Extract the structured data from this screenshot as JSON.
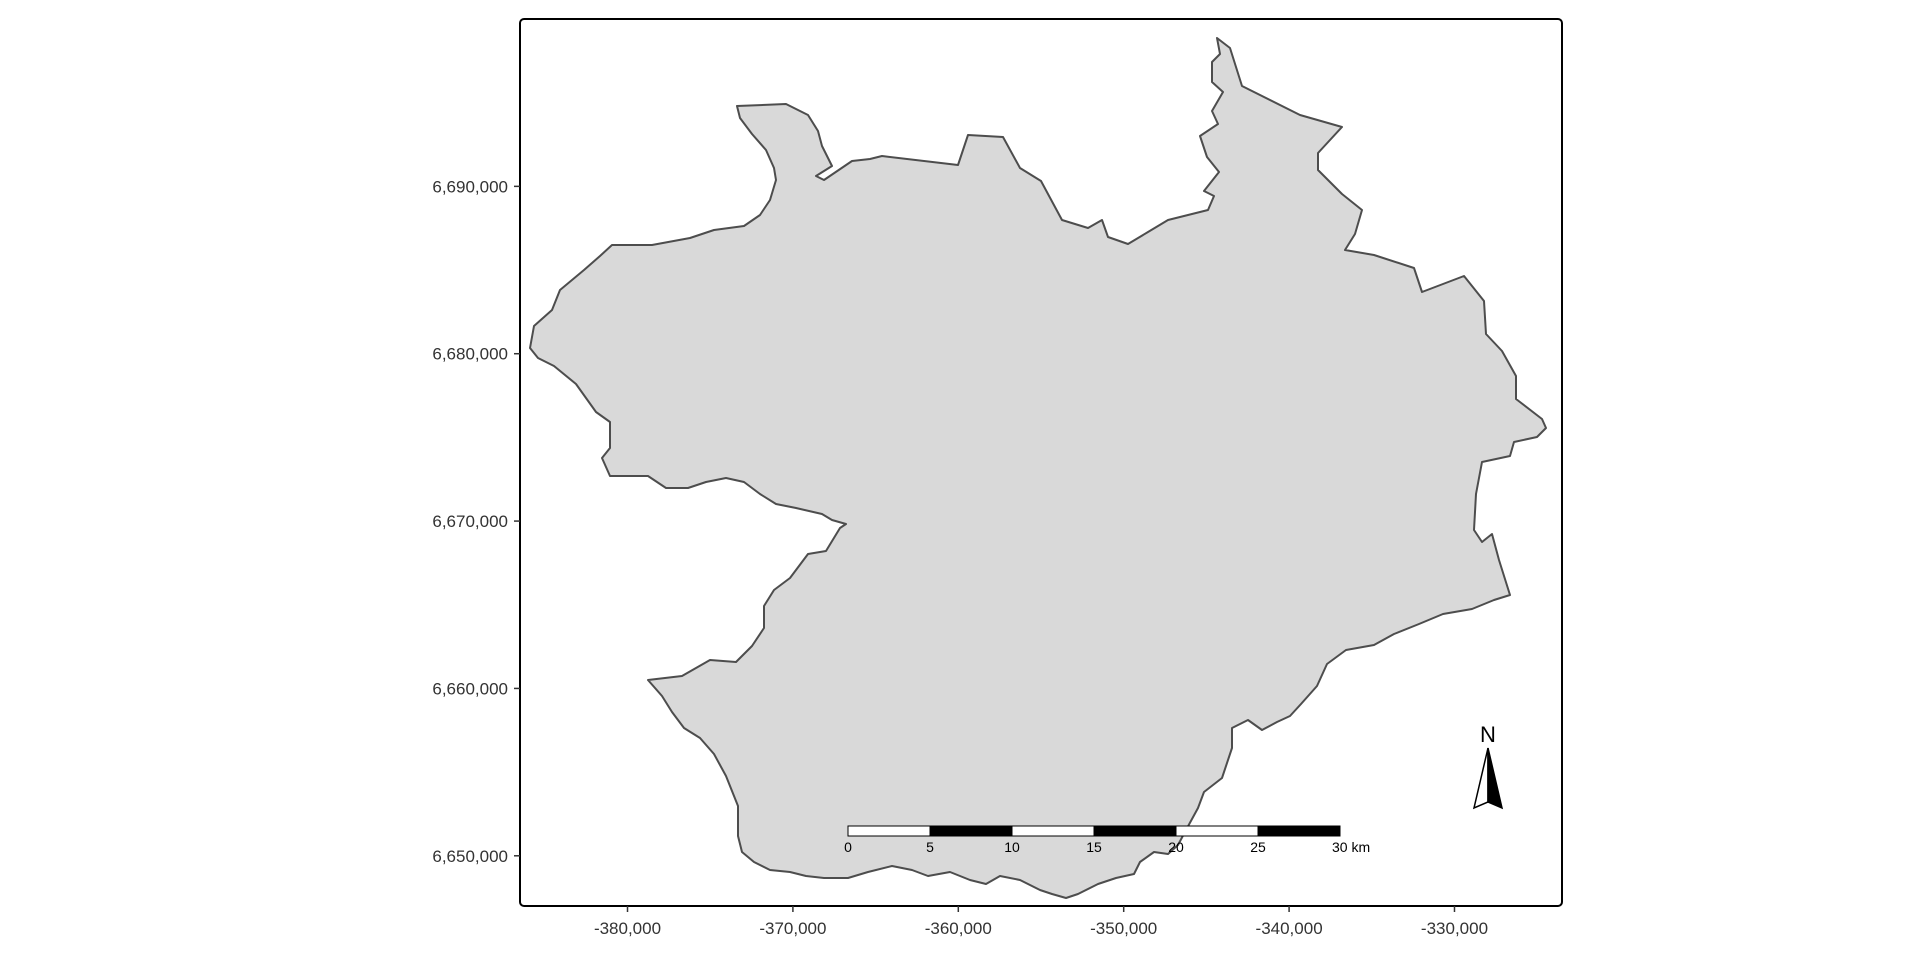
{
  "map": {
    "fill_color": "#d9d9d9",
    "border_color": "#4d4d4d",
    "frame_color": "#000000",
    "x_range": [
      -386500,
      -323500
    ],
    "y_range": [
      6647000,
      6700000
    ]
  },
  "axes": {
    "x_ticks": [
      {
        "value": -380000,
        "label": "-380,000"
      },
      {
        "value": -370000,
        "label": "-370,000"
      },
      {
        "value": -360000,
        "label": "-360,000"
      },
      {
        "value": -350000,
        "label": "-350,000"
      },
      {
        "value": -340000,
        "label": "-340,000"
      },
      {
        "value": -330000,
        "label": "-330,000"
      }
    ],
    "y_ticks": [
      {
        "value": 6690000,
        "label": "6,690,000"
      },
      {
        "value": 6680000,
        "label": "6,680,000"
      },
      {
        "value": 6670000,
        "label": "6,670,000"
      },
      {
        "value": 6660000,
        "label": "6,660,000"
      },
      {
        "value": 6650000,
        "label": "6,650,000"
      }
    ]
  },
  "scale_bar": {
    "labels": [
      "0",
      "5",
      "10",
      "15",
      "20",
      "25",
      "30 km"
    ],
    "segment_colors": [
      "#ffffff",
      "#000000",
      "#ffffff",
      "#000000",
      "#ffffff",
      "#000000"
    ]
  },
  "north_arrow": {
    "label": "N"
  }
}
